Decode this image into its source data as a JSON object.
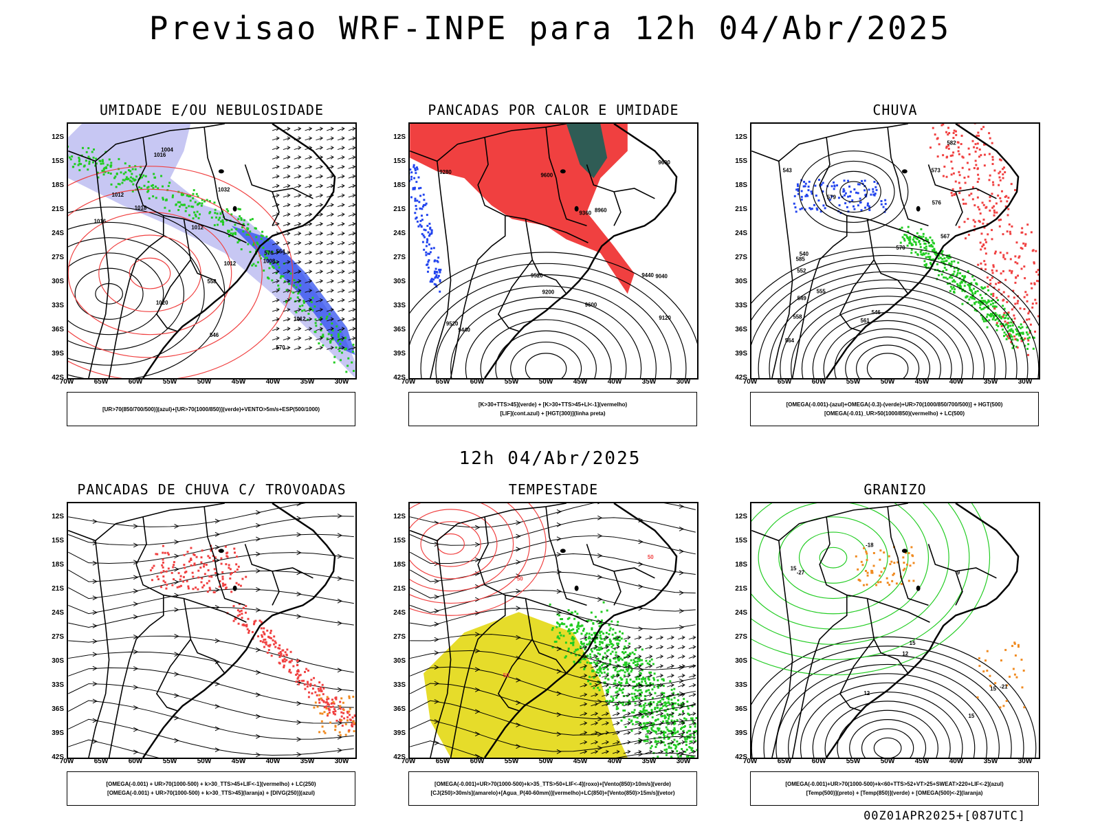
{
  "header": {
    "title": "Previsao WRF-INPE  para 12h 04/Abr/2025"
  },
  "subtitle": "12h 04/Abr/2025",
  "footer": "00Z01APR2025+[087UTC]",
  "axes": {
    "lat_labels": [
      "12S",
      "15S",
      "18S",
      "21S",
      "24S",
      "27S",
      "30S",
      "33S",
      "36S",
      "39S",
      "42S"
    ],
    "lon_labels": [
      "70W",
      "65W",
      "60W",
      "55W",
      "50W",
      "45W",
      "40W",
      "35W",
      "30W"
    ]
  },
  "panels": [
    {
      "title": "UMIDADE E/OU NEBULOSIDADE",
      "legend": [
        "[UR>70(850/700/500)](azul)+[UR>70(1000/850)](verde)+VENTO>5m/s+ESP(500/1000)"
      ],
      "contour_labels": [
        "1018",
        "1012",
        "1012",
        "1016",
        "1020",
        "1032",
        "1016",
        "1012",
        "1012",
        "1008",
        "1004",
        "576",
        "570",
        "564",
        "558",
        "546"
      ]
    },
    {
      "title": "PANCADAS POR CALOR E UMIDADE",
      "legend": [
        "[K>30+TTS>45](verde) + [K>30+TTS>45+LI<-1](vermelho)",
        "[LIF](cont.azul) + [HGT(300)](linha preta)"
      ],
      "contour_labels": [
        "9600",
        "9600",
        "9520",
        "9600",
        "9440",
        "9360",
        "9280",
        "9200",
        "9120",
        "9040",
        "8960",
        "9520",
        "9440"
      ]
    },
    {
      "title": "CHUVA",
      "legend": [
        "[OMEGA(-0.001)-(azul)+OMEGA(-0.3)-(verde)+UR>70(1000/850/700/500)] + HGT(500)",
        "[OMEGA(-0.01)_UR>50(1000/850)(vermelho) + LC(500)"
      ],
      "contour_labels": [
        "582",
        "579",
        "576",
        "573",
        "570",
        "567",
        "564",
        "561",
        "558",
        "555",
        "552",
        "549",
        "546",
        "543",
        "540",
        "585"
      ]
    },
    {
      "title": "PANCADAS DE CHUVA C/ TROVOADAS",
      "legend": [
        "[OMEGA(-0.001) + UR>70(1000-500) + k>30_TTS>45+LIF<-1](vermelho) + LC(250)",
        "[OMEGA(-0.001) + UR>70(1000-500) + k>30_TTS>45](laranja) + [DIVG(250)](azul)"
      ],
      "contour_labels": []
    },
    {
      "title": "TEMPESTADE",
      "legend": [
        "[OMEGA(-0.001)+UR>70(1000-500)+k>35_TTS>50+LIF<-4](roxo)+[Vento(850)>10m/s](verde)",
        "[CJ(250)>30m/s](amarelo)+[Agua_P(40-60mm)](vermelho)+LC(850)+[Vento(850)>15m/s](vetor)"
      ],
      "contour_labels": [
        "50",
        "50",
        "50"
      ]
    },
    {
      "title": "GRANIZO",
      "legend": [
        "[OMEGA(-0.001)+UR>70(1000-500)+k<60+TTS>52+VT>25+SWEAT>220+LIF<-2](azul)",
        "[Temp(500)](preto) + [Temp(850)](verde) + [OMEGA(500)<-2](laranja)"
      ],
      "contour_labels": [
        "15",
        "15",
        "12",
        "9",
        "-18",
        "-21",
        "-27",
        "15",
        "12",
        "15"
      ]
    }
  ],
  "colors": {
    "red": "#f04040",
    "green": "#22cc22",
    "blue": "#2244ee",
    "lavender": "#b9b9f0",
    "darkteal": "#2f5c55",
    "yellow": "#e6dc2a",
    "orange": "#f08a20",
    "purple": "#b000d0"
  }
}
